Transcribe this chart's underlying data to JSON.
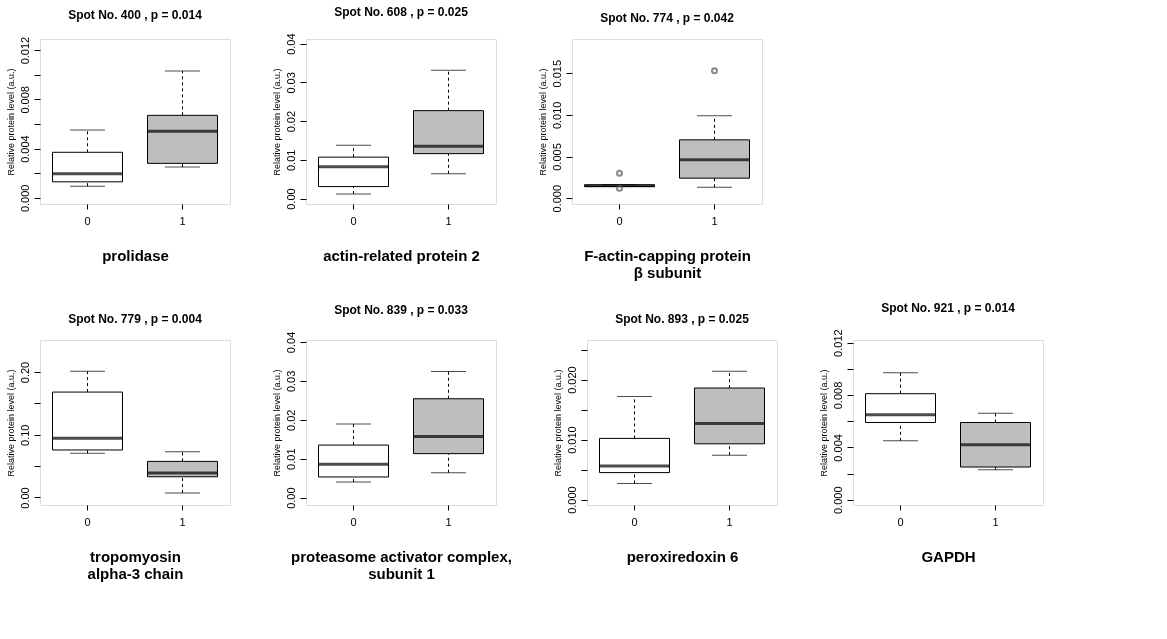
{
  "chart_data": [
    {
      "type": "box",
      "title": "Spot No.  400 , p =  0.014",
      "xlabel": "prolidase",
      "ylabel": "Relative protein level (a.u.)",
      "categories": [
        "0",
        "1"
      ],
      "colors": [
        "#ffffff",
        "#bebebe"
      ],
      "grid": false,
      "ylim": [
        -0.0005,
        0.0129
      ],
      "yticks": [
        {
          "value": 0,
          "label": "0.000"
        },
        {
          "value": 0.002,
          "label": null
        },
        {
          "value": 0.004,
          "label": "0.004"
        },
        {
          "value": 0.006,
          "label": null
        },
        {
          "value": 0.008,
          "label": "0.008"
        },
        {
          "value": 0.01,
          "label": null
        },
        {
          "value": 0.012,
          "label": "0.012"
        }
      ],
      "boxes": [
        {
          "low": 0.00095,
          "q1": 0.0013,
          "median": 0.00195,
          "q3": 0.0037,
          "high": 0.0055
        },
        {
          "low": 0.0025,
          "q1": 0.0028,
          "median": 0.0054,
          "q3": 0.0067,
          "high": 0.0103
        }
      ]
    },
    {
      "type": "box",
      "title": "Spot No.  608 , p =  0.025",
      "xlabel": "actin-related protein 2",
      "ylabel": "Relative protein level (a.u.)",
      "categories": [
        "0",
        "1"
      ],
      "colors": [
        "#ffffff",
        "#bebebe"
      ],
      "grid": false,
      "ylim": [
        -0.0014,
        0.0412
      ],
      "yticks": [
        {
          "value": 0,
          "label": "0.00"
        },
        {
          "value": 0.01,
          "label": "0.01"
        },
        {
          "value": 0.02,
          "label": "0.02"
        },
        {
          "value": 0.03,
          "label": "0.03"
        },
        {
          "value": 0.04,
          "label": "0.04"
        }
      ],
      "boxes": [
        {
          "low": 0.0012,
          "q1": 0.0031,
          "median": 0.0082,
          "q3": 0.0107,
          "high": 0.0138
        },
        {
          "low": 0.0064,
          "q1": 0.0116,
          "median": 0.0135,
          "q3": 0.0227,
          "high": 0.0331
        }
      ]
    },
    {
      "type": "box",
      "title": "Spot No.  774 , p =  0.042",
      "xlabel": "F-actin-capping protein\nβ subunit",
      "ylabel": "Relative protein level (a.u.)",
      "categories": [
        "0",
        "1"
      ],
      "colors": [
        "#ffffff",
        "#bebebe"
      ],
      "grid": false,
      "ylim": [
        -0.0007,
        0.0191
      ],
      "yticks": [
        {
          "value": 0,
          "label": "0.000"
        },
        {
          "value": 0.005,
          "label": "0.005"
        },
        {
          "value": 0.01,
          "label": "0.010"
        },
        {
          "value": 0.015,
          "label": "0.015"
        }
      ],
      "boxes": [
        {
          "low": 0.0014,
          "q1": 0.0014,
          "median": 0.0015,
          "q3": 0.0016,
          "high": 0.0016,
          "outliers": [
            0.003,
            0.0012
          ]
        },
        {
          "low": 0.0013,
          "q1": 0.0024,
          "median": 0.0046,
          "q3": 0.007,
          "high": 0.0099,
          "outliers": [
            0.0153
          ]
        }
      ]
    },
    {
      "type": "box",
      "title": "Spot No.  779 , p =  0.004",
      "xlabel": "tropomyosin\nalpha-3 chain",
      "ylabel": "Relative protein level (a.u.)",
      "categories": [
        "0",
        "1"
      ],
      "colors": [
        "#ffffff",
        "#bebebe"
      ],
      "grid": false,
      "ylim": [
        -0.012,
        0.251
      ],
      "yticks": [
        {
          "value": 0,
          "label": "0.00"
        },
        {
          "value": 0.05,
          "label": null
        },
        {
          "value": 0.1,
          "label": "0.10"
        },
        {
          "value": 0.15,
          "label": null
        },
        {
          "value": 0.2,
          "label": "0.20"
        }
      ],
      "boxes": [
        {
          "low": 0.0704,
          "q1": 0.0757,
          "median": 0.0944,
          "q3": 0.168,
          "high": 0.201
        },
        {
          "low": 0.007,
          "q1": 0.033,
          "median": 0.039,
          "q3": 0.0575,
          "high": 0.0727
        }
      ]
    },
    {
      "type": "box",
      "title": "Spot No.  839 , p =  0.033",
      "xlabel": "proteasome activator complex,\nsubunit 1",
      "ylabel": "Relative protein level (a.u.)",
      "categories": [
        "0",
        "1"
      ],
      "colors": [
        "#ffffff",
        "#bebebe"
      ],
      "grid": false,
      "ylim": [
        -0.0019,
        0.0405
      ],
      "yticks": [
        {
          "value": 0,
          "label": "0.00"
        },
        {
          "value": 0.01,
          "label": "0.01"
        },
        {
          "value": 0.02,
          "label": "0.02"
        },
        {
          "value": 0.03,
          "label": "0.03"
        },
        {
          "value": 0.04,
          "label": "0.04"
        }
      ],
      "boxes": [
        {
          "low": 0.004,
          "q1": 0.0053,
          "median": 0.0086,
          "q3": 0.0135,
          "high": 0.0189
        },
        {
          "low": 0.0064,
          "q1": 0.0113,
          "median": 0.0157,
          "q3": 0.0254,
          "high": 0.0324
        }
      ]
    },
    {
      "type": "box",
      "title": "Spot No.  893 , p =  0.025",
      "xlabel": "peroxiredoxin 6",
      "ylabel": "Relative protein level (a.u.)",
      "categories": [
        "0",
        "1"
      ],
      "colors": [
        "#ffffff",
        "#bebebe"
      ],
      "grid": false,
      "ylim": [
        -0.0009,
        0.0266
      ],
      "yticks": [
        {
          "value": 0,
          "label": "0.000"
        },
        {
          "value": 0.005,
          "label": null
        },
        {
          "value": 0.01,
          "label": "0.010"
        },
        {
          "value": 0.015,
          "label": null
        },
        {
          "value": 0.02,
          "label": "0.020"
        },
        {
          "value": 0.025,
          "label": null
        }
      ],
      "boxes": [
        {
          "low": 0.0027,
          "q1": 0.0045,
          "median": 0.0056,
          "q3": 0.0102,
          "high": 0.0172
        },
        {
          "low": 0.0074,
          "q1": 0.0093,
          "median": 0.0127,
          "q3": 0.0186,
          "high": 0.0214
        }
      ]
    },
    {
      "type": "box",
      "title": "Spot No.  921 , p =  0.014",
      "xlabel": "GAPDH",
      "ylabel": "Relative protein level (a.u.)",
      "categories": [
        "0",
        "1"
      ],
      "colors": [
        "#ffffff",
        "#bebebe"
      ],
      "grid": false,
      "ylim": [
        -0.0004,
        0.0122
      ],
      "yticks": [
        {
          "value": 0,
          "label": "0.000"
        },
        {
          "value": 0.002,
          "label": null
        },
        {
          "value": 0.004,
          "label": "0.004"
        },
        {
          "value": 0.006,
          "label": null
        },
        {
          "value": 0.008,
          "label": "0.008"
        },
        {
          "value": 0.01,
          "label": null
        },
        {
          "value": 0.012,
          "label": "0.012"
        }
      ],
      "boxes": [
        {
          "low": 0.0045,
          "q1": 0.0059,
          "median": 0.0065,
          "q3": 0.0081,
          "high": 0.0097
        },
        {
          "low": 0.0023,
          "q1": 0.0025,
          "median": 0.0042,
          "q3": 0.0059,
          "high": 0.0066
        }
      ]
    }
  ]
}
